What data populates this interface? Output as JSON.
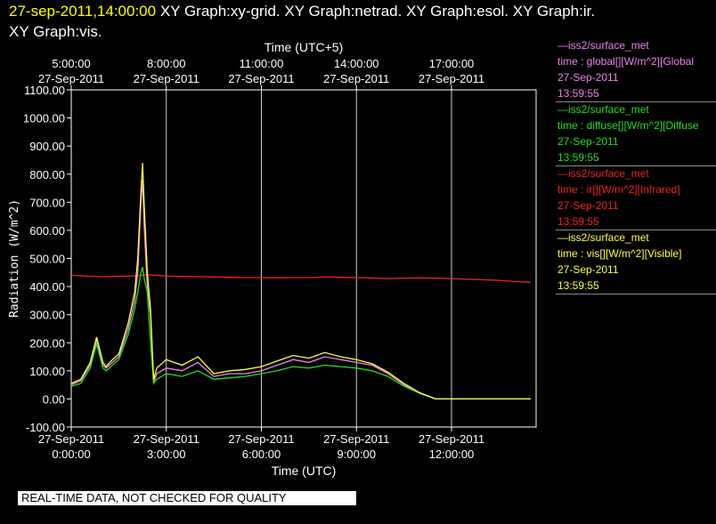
{
  "header": {
    "timestamp": "27-sep-2011,14:00:00",
    "graphs_line1": "XY Graph:xy-grid.  XY Graph:netrad.  XY Graph:esol.  XY Graph:ir.",
    "graphs_line2": "XY Graph:vis."
  },
  "colors": {
    "background": "#000000",
    "axes": "#ffffff",
    "grid": "#d0d0d0",
    "global": "#ee82ee",
    "diffuse": "#22dd22",
    "ir": "#ee2222",
    "vis": "#ffff44",
    "timestamp": "#ffff00"
  },
  "legend": [
    {
      "station": "—iss2/surface_met",
      "field": "time : global[][W/m^2][Global",
      "date": "27-Sep-2011",
      "time": "13:59:55",
      "color": "#ee82ee"
    },
    {
      "station": "—iss2/surface_met",
      "field": "time : diffuse[][W/m^2][Diffuse",
      "date": "27-Sep-2011",
      "time": "13:59:55",
      "color": "#22dd22"
    },
    {
      "station": "—iss2/surface_met",
      "field": "time : ir[][W/m^2][Infrared]",
      "date": "27-Sep-2011",
      "time": "13:59:55",
      "color": "#ee2222"
    },
    {
      "station": "—iss2/surface_met",
      "field": "time : vis[][W/m^2][Visible]",
      "date": "27-Sep-2011",
      "time": "13:59:55",
      "color": "#ffff44"
    }
  ],
  "banner": "REAL-TIME DATA, NOT CHECKED FOR QUALITY",
  "chart_data": {
    "type": "line",
    "title": "",
    "xlabel": "Time (UTC)",
    "x2label": "Time (UTC+5)",
    "ylabel": "Radiation (W/m^2)",
    "xlim": [
      0,
      14.67
    ],
    "ylim": [
      -100,
      1100
    ],
    "yticks": [
      -100,
      0,
      100,
      200,
      300,
      400,
      500,
      600,
      700,
      800,
      900,
      1000,
      1100
    ],
    "ytick_labels": [
      "-100.00",
      "0.00",
      "100.00",
      "200.00",
      "300.00",
      "400.00",
      "500.00",
      "600.00",
      "700.00",
      "800.00",
      "900.00",
      "1000.00",
      "1100.00"
    ],
    "xticks": [
      {
        "value": 0,
        "date": "27-Sep-2011",
        "time": "0:00:00",
        "grid": false
      },
      {
        "value": 3,
        "date": "27-Sep-2011",
        "time": "3:00:00",
        "grid": true
      },
      {
        "value": 6,
        "date": "27-Sep-2011",
        "time": "6:00:00",
        "grid": true
      },
      {
        "value": 9,
        "date": "27-Sep-2011",
        "time": "9:00:00",
        "grid": true
      },
      {
        "value": 12,
        "date": "27-Sep-2011",
        "time": "12:00:00",
        "grid": true
      }
    ],
    "x2ticks": [
      {
        "value": 0,
        "date": "27-Sep-2011",
        "time": "5:00:00"
      },
      {
        "value": 3,
        "date": "27-Sep-2011",
        "time": "8:00:00"
      },
      {
        "value": 6,
        "date": "27-Sep-2011",
        "time": "11:00:00"
      },
      {
        "value": 9,
        "date": "27-Sep-2011",
        "time": "14:00:00"
      },
      {
        "value": 12,
        "date": "27-Sep-2011",
        "time": "17:00:00"
      }
    ],
    "grid": true,
    "legend_position": "right",
    "series": [
      {
        "name": "global",
        "color": "#ee82ee",
        "x": [
          0,
          0.3,
          0.6,
          0.8,
          1.0,
          1.1,
          1.3,
          1.5,
          1.8,
          2.0,
          2.1,
          2.2,
          2.25,
          2.3,
          2.4,
          2.5,
          2.6,
          2.7,
          3.0,
          3.5,
          4.0,
          4.5,
          5.0,
          5.5,
          6.0,
          6.5,
          7.0,
          7.5,
          8.0,
          8.5,
          9.0,
          9.5,
          10.0,
          10.5,
          11.0,
          11.5,
          12.0,
          12.5,
          13.0,
          13.5,
          14.0,
          14.5
        ],
        "y": [
          50,
          65,
          120,
          210,
          120,
          110,
          130,
          150,
          250,
          350,
          450,
          700,
          780,
          620,
          400,
          300,
          60,
          90,
          110,
          100,
          130,
          80,
          90,
          90,
          100,
          120,
          140,
          130,
          150,
          140,
          130,
          120,
          90,
          50,
          20,
          0,
          0,
          0,
          0,
          0,
          0,
          0
        ]
      },
      {
        "name": "diffuse",
        "color": "#22dd22",
        "x": [
          0,
          0.3,
          0.6,
          0.8,
          1.0,
          1.1,
          1.3,
          1.5,
          1.8,
          2.0,
          2.1,
          2.2,
          2.25,
          2.3,
          2.4,
          2.5,
          2.6,
          2.7,
          3.0,
          3.5,
          4.0,
          4.5,
          5.0,
          5.5,
          6.0,
          6.5,
          7.0,
          7.5,
          8.0,
          8.5,
          9.0,
          9.5,
          10.0,
          10.5,
          11.0,
          11.5,
          12.0,
          12.5,
          13.0,
          13.5,
          14.0,
          14.5
        ],
        "y": [
          45,
          55,
          110,
          195,
          110,
          100,
          120,
          140,
          230,
          320,
          380,
          450,
          470,
          430,
          380,
          200,
          55,
          70,
          90,
          80,
          100,
          70,
          75,
          80,
          90,
          100,
          115,
          110,
          120,
          115,
          110,
          100,
          80,
          45,
          20,
          0,
          0,
          0,
          0,
          0,
          0,
          0
        ]
      },
      {
        "name": "ir",
        "color": "#ee2222",
        "x": [
          0,
          0.5,
          1.0,
          1.5,
          2.0,
          2.4,
          2.7,
          3.0,
          3.5,
          4.0,
          4.5,
          5.0,
          5.5,
          6.0,
          6.5,
          7.0,
          7.5,
          8.0,
          8.5,
          9.0,
          9.5,
          10.0,
          10.5,
          11.0,
          11.5,
          12.0,
          12.5,
          13.0,
          13.5,
          14.0,
          14.5
        ],
        "y": [
          440,
          437,
          435,
          436,
          438,
          442,
          440,
          437,
          436,
          435,
          434,
          433,
          432,
          432,
          431,
          432,
          432,
          434,
          433,
          432,
          430,
          428,
          430,
          431,
          430,
          428,
          426,
          424,
          422,
          418,
          415
        ]
      },
      {
        "name": "vis",
        "color": "#ffff44",
        "x": [
          0,
          0.3,
          0.6,
          0.8,
          1.0,
          1.1,
          1.3,
          1.5,
          1.8,
          2.0,
          2.1,
          2.2,
          2.25,
          2.3,
          2.4,
          2.5,
          2.6,
          2.7,
          3.0,
          3.5,
          4.0,
          4.5,
          5.0,
          5.5,
          6.0,
          6.5,
          7.0,
          7.5,
          8.0,
          8.5,
          9.0,
          9.5,
          10.0,
          10.5,
          11.0,
          11.5,
          12.0,
          12.5,
          13.0,
          13.5,
          14.0,
          14.5
        ],
        "y": [
          55,
          70,
          130,
          220,
          130,
          115,
          140,
          160,
          270,
          380,
          500,
          740,
          840,
          700,
          450,
          320,
          70,
          110,
          140,
          120,
          150,
          90,
          100,
          105,
          115,
          135,
          155,
          145,
          165,
          150,
          140,
          125,
          95,
          55,
          22,
          0,
          0,
          0,
          0,
          0,
          0,
          0
        ]
      }
    ]
  }
}
